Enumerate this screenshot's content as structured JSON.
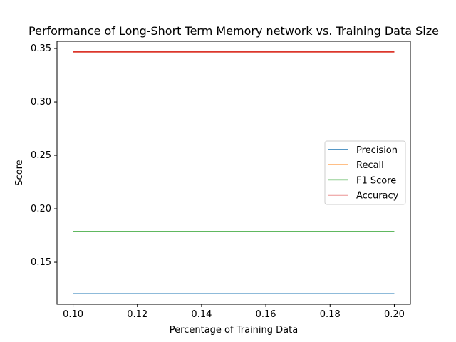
{
  "chart_data": {
    "type": "line",
    "title": "Performance of Long-Short Term Memory network vs. Training Data Size",
    "xlabel": "Percentage of Training Data",
    "ylabel": "Score",
    "x": [
      0.1,
      0.2
    ],
    "xlim": [
      0.095,
      0.205
    ],
    "ylim": [
      0.1107,
      0.3567
    ],
    "xticks": [
      0.1,
      0.12,
      0.14,
      0.16,
      0.18,
      0.2
    ],
    "xtick_labels": [
      "0.10",
      "0.12",
      "0.14",
      "0.16",
      "0.18",
      "0.20"
    ],
    "yticks": [
      0.15,
      0.2,
      0.25,
      0.3,
      0.35
    ],
    "ytick_labels": [
      "0.15",
      "0.20",
      "0.25",
      "0.30",
      "0.35"
    ],
    "grid": false,
    "legend_position": "center-right",
    "series": [
      {
        "name": "Precision",
        "values": [
          0.1205,
          0.1205
        ],
        "color": "#1f77b4"
      },
      {
        "name": "Recall",
        "values": [
          0.3468,
          0.3468
        ],
        "color": "#ff7f0e"
      },
      {
        "name": "F1 Score",
        "values": [
          0.1787,
          0.1787
        ],
        "color": "#2ca02c"
      },
      {
        "name": "Accuracy",
        "values": [
          0.3468,
          0.3468
        ],
        "color": "#d62728"
      }
    ]
  }
}
